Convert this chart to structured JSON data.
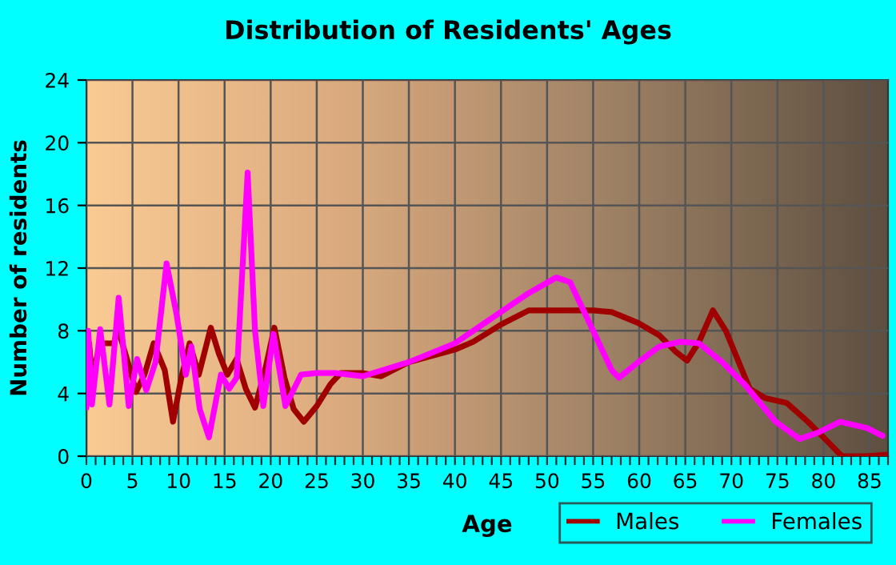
{
  "chart_data": {
    "type": "line",
    "title": "Distribution of Residents' Ages",
    "xlabel": "Age",
    "ylabel": "Number of residents",
    "series": [
      {
        "name": "Males",
        "color": "#a00000",
        "x": [
          0,
          0.3,
          0.6,
          1.5,
          3,
          3.4,
          4.5,
          5.4,
          6.3,
          7.3,
          8.5,
          9.4,
          10.3,
          11.2,
          12.2,
          13.5,
          14.4,
          15.3,
          16.3,
          17.3,
          18.3,
          19.4,
          20.4,
          21.5,
          22.5,
          23.6,
          25,
          26.5,
          27.6,
          30,
          32,
          35,
          40,
          42,
          45,
          48,
          50,
          55,
          57,
          59.9,
          62.2,
          63.9,
          65.2,
          66.5,
          68,
          69.4,
          72,
          73.7,
          76,
          78.3,
          80,
          82,
          84.5,
          87
        ],
        "values": [
          4.0,
          7.2,
          5.0,
          7.2,
          7.2,
          8.2,
          6.0,
          4.1,
          5.2,
          7.2,
          5.5,
          2.2,
          5.0,
          7.2,
          5.2,
          8.2,
          6.5,
          5.2,
          6.2,
          4.3,
          3.1,
          5.5,
          8.2,
          5.0,
          3.0,
          2.2,
          3.2,
          4.6,
          5.3,
          5.3,
          5.1,
          6.0,
          6.8,
          7.3,
          8.4,
          9.3,
          9.3,
          9.3,
          9.2,
          8.5,
          7.7,
          6.7,
          6.1,
          7.3,
          9.3,
          8.0,
          4.3,
          3.7,
          3.4,
          2.2,
          1.2,
          0,
          0,
          0.1
        ]
      },
      {
        "name": "Females",
        "color": "#ff00ff",
        "x": [
          0,
          0.2,
          0.6,
          1.5,
          2.5,
          3.5,
          4.6,
          5.5,
          6.5,
          7.5,
          8.7,
          9.8,
          10.8,
          11.4,
          12.3,
          13.3,
          14.6,
          15.5,
          16.3,
          17.5,
          18.3,
          19.2,
          20.3,
          21.6,
          23.3,
          25,
          27,
          30,
          35,
          40,
          45,
          48,
          51,
          52.5,
          55,
          57,
          57.8,
          59.9,
          62.2,
          64.5,
          66.5,
          69,
          71.4,
          74.8,
          77.4,
          79.4,
          81.8,
          84.7,
          86.4
        ],
        "values": [
          3.1,
          8.0,
          3.3,
          8.1,
          3.3,
          10.1,
          3.2,
          6.2,
          4.2,
          6.0,
          12.3,
          9.0,
          5.2,
          7.0,
          3.0,
          1.2,
          5.2,
          4.3,
          5.0,
          18.1,
          8.0,
          3.2,
          7.8,
          3.2,
          5.2,
          5.3,
          5.3,
          5.1,
          6.0,
          7.2,
          9.2,
          10.4,
          11.4,
          11.1,
          8.0,
          5.5,
          5.0,
          6.0,
          7.0,
          7.3,
          7.2,
          6.0,
          4.6,
          2.2,
          1.1,
          1.5,
          2.2,
          1.8,
          1.3
        ]
      }
    ],
    "xlim": [
      0,
      87
    ],
    "ylim": [
      0,
      24
    ],
    "yticks": [
      0,
      4,
      8,
      12,
      16,
      20,
      24
    ],
    "xticks": [
      0,
      {
        "value": 1,
        "label": null
      },
      {
        "value": 2,
        "label": null
      },
      {
        "value": 3,
        "label": null
      },
      {
        "value": 4,
        "label": null
      },
      5,
      {
        "value": 6,
        "label": null
      },
      {
        "value": 7,
        "label": null
      },
      {
        "value": 8,
        "label": null
      },
      {
        "value": 9,
        "label": null
      },
      10,
      {
        "value": 11,
        "label": null
      },
      {
        "value": 12,
        "label": null
      },
      {
        "value": 13,
        "label": null
      },
      {
        "value": 14,
        "label": null
      },
      15,
      {
        "value": 16,
        "label": null
      },
      {
        "value": 17,
        "label": null
      },
      {
        "value": 18,
        "label": null
      },
      {
        "value": 19,
        "label": null
      },
      20,
      {
        "value": 21,
        "label": null
      },
      {
        "value": 22,
        "label": null
      },
      {
        "value": 23,
        "label": null
      },
      {
        "value": 24,
        "label": null
      },
      25,
      {
        "value": 26,
        "label": null
      },
      {
        "value": 27,
        "label": null
      },
      {
        "value": 28,
        "label": null
      },
      {
        "value": 29,
        "label": null
      },
      30,
      {
        "value": 31,
        "label": null
      },
      {
        "value": 32,
        "label": null
      },
      {
        "value": 33,
        "label": null
      },
      {
        "value": 34,
        "label": null
      },
      35,
      {
        "value": 36,
        "label": null
      },
      {
        "value": 37,
        "label": null
      },
      {
        "value": 38,
        "label": null
      },
      {
        "value": 39,
        "label": null
      },
      40,
      {
        "value": 41,
        "label": null
      },
      {
        "value": 42,
        "label": null
      },
      {
        "value": 43,
        "label": null
      },
      {
        "value": 44,
        "label": null
      },
      45,
      {
        "value": 46,
        "label": null
      },
      {
        "value": 47,
        "label": null
      },
      {
        "value": 48,
        "label": null
      },
      {
        "value": 49,
        "label": null
      },
      50,
      {
        "value": 51,
        "label": null
      },
      {
        "value": 52,
        "label": null
      },
      {
        "value": 53,
        "label": null
      },
      {
        "value": 54,
        "label": null
      },
      55,
      {
        "value": 56,
        "label": null
      },
      {
        "value": 57,
        "label": null
      },
      {
        "value": 58,
        "label": null
      },
      {
        "value": 59,
        "label": null
      },
      60,
      {
        "value": 61,
        "label": null
      },
      {
        "value": 62,
        "label": null
      },
      {
        "value": 63,
        "label": null
      },
      {
        "value": 64,
        "label": null
      },
      65,
      {
        "value": 66,
        "label": null
      },
      {
        "value": 67,
        "label": null
      },
      {
        "value": 68,
        "label": null
      },
      {
        "value": 69,
        "label": null
      },
      70,
      {
        "value": 71,
        "label": null
      },
      {
        "value": 72,
        "label": null
      },
      {
        "value": 73,
        "label": null
      },
      {
        "value": 74,
        "label": null
      },
      75,
      {
        "value": 76,
        "label": null
      },
      {
        "value": 77,
        "label": null
      },
      {
        "value": 78,
        "label": null
      },
      {
        "value": 79,
        "label": null
      },
      80,
      {
        "value": 81,
        "label": null
      },
      {
        "value": 82,
        "label": null
      },
      {
        "value": 83,
        "label": null
      },
      {
        "value": 84,
        "label": null
      },
      85,
      {
        "value": 86,
        "label": null
      },
      {
        "value": 87,
        "label": null
      }
    ],
    "grid": true,
    "legend": "bottom right",
    "line_style": "solid",
    "marker": "none"
  }
}
